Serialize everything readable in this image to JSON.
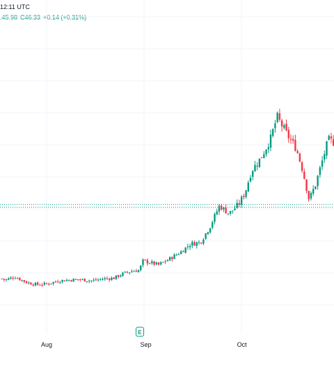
{
  "header": {
    "time_fragment": "12:11 UTC",
    "low_fragment": ".45.98",
    "close_label": "C",
    "close_value": "46.33",
    "change": "+0.14 (+0.31%)"
  },
  "earnings_marker": {
    "label": "E",
    "date": "Sep 1"
  },
  "colors": {
    "up": "#089981",
    "down": "#f23645",
    "grid": "#f0f3fa",
    "current_price_line": "#089981"
  },
  "chart_data": {
    "type": "candlestick",
    "x_tick_labels": [
      "Aug",
      "Sep",
      "Oct"
    ],
    "x_tick_positions_days": [
      0,
      31,
      61
    ],
    "approx_price_range": [
      16,
      51
    ],
    "current_price": 33.8,
    "grid": true,
    "legend": "none",
    "anchor_closes": [
      {
        "day": -14,
        "close": 22.5
      },
      {
        "day": -13,
        "close": 22.3
      },
      {
        "day": -10,
        "close": 22.8
      },
      {
        "day": -6,
        "close": 21.9
      },
      {
        "day": -3,
        "close": 21.6
      },
      {
        "day": 0,
        "close": 21.7
      },
      {
        "day": 4,
        "close": 22.2
      },
      {
        "day": 10,
        "close": 22.4
      },
      {
        "day": 14,
        "close": 22.2
      },
      {
        "day": 18,
        "close": 22.5
      },
      {
        "day": 21,
        "close": 22.6
      },
      {
        "day": 24,
        "close": 23.3
      },
      {
        "day": 27,
        "close": 23.7
      },
      {
        "day": 29,
        "close": 23.8
      },
      {
        "day": 30,
        "close": 25.2
      },
      {
        "day": 32,
        "close": 25.0
      },
      {
        "day": 35,
        "close": 24.6
      },
      {
        "day": 38,
        "close": 25.4
      },
      {
        "day": 42,
        "close": 26.6
      },
      {
        "day": 45,
        "close": 27.8
      },
      {
        "day": 48,
        "close": 28.0
      },
      {
        "day": 51,
        "close": 30.4
      },
      {
        "day": 54,
        "close": 33.6
      },
      {
        "day": 57,
        "close": 32.4
      },
      {
        "day": 60,
        "close": 33.8
      },
      {
        "day": 62,
        "close": 35.6
      },
      {
        "day": 64,
        "close": 38.9
      },
      {
        "day": 67,
        "close": 40.9
      },
      {
        "day": 70,
        "close": 43.8
      },
      {
        "day": 72,
        "close": 47.1
      },
      {
        "day": 75,
        "close": 44.5
      },
      {
        "day": 78,
        "close": 42.3
      },
      {
        "day": 80,
        "close": 39.0
      },
      {
        "day": 82,
        "close": 34.5
      },
      {
        "day": 84,
        "close": 36.8
      },
      {
        "day": 86,
        "close": 40.2
      },
      {
        "day": 88,
        "close": 43.6
      },
      {
        "day": 90,
        "close": 43.2
      }
    ]
  }
}
